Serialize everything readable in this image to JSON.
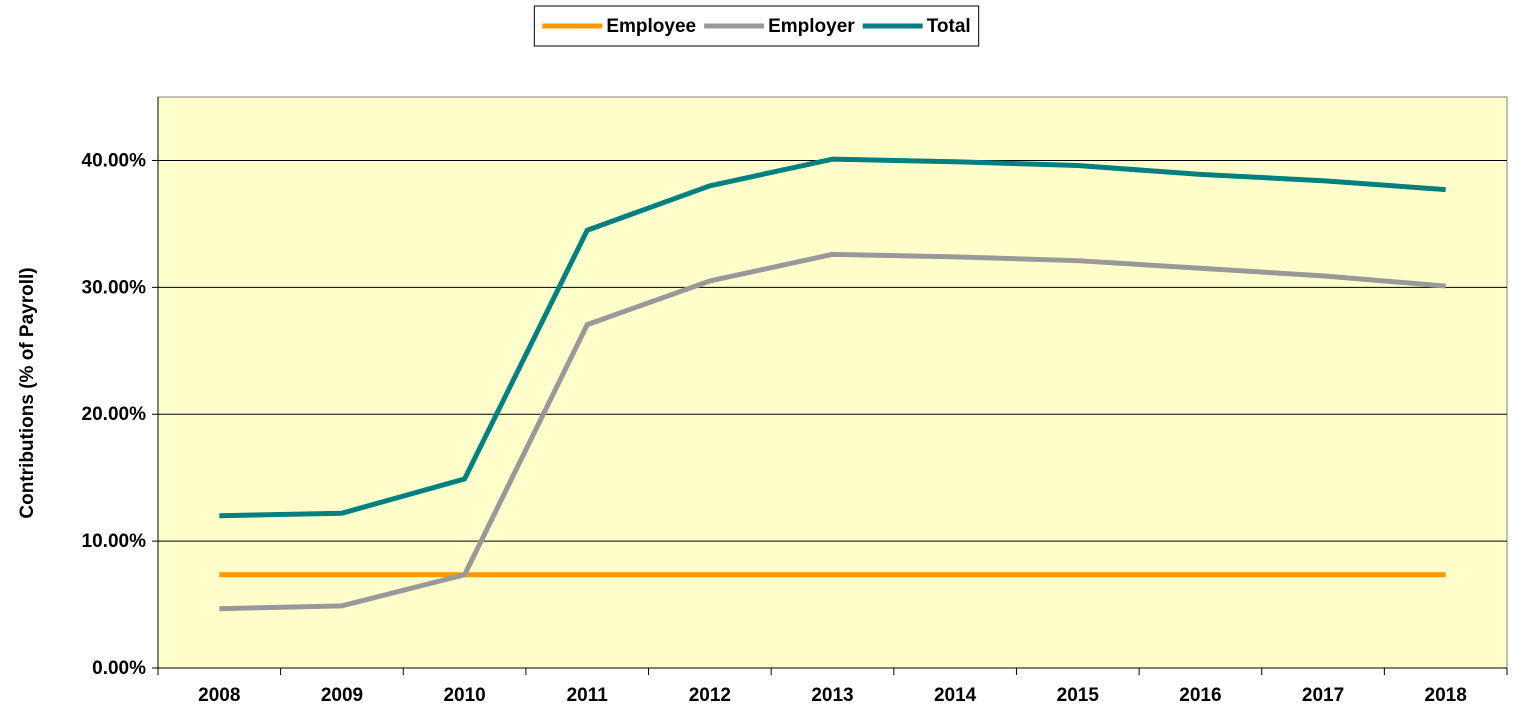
{
  "chart_data": {
    "type": "line",
    "y_label": "Contributions (% of Payroll)",
    "categories": [
      "2008",
      "2009",
      "2010",
      "2011",
      "2012",
      "2013",
      "2014",
      "2015",
      "2016",
      "2017",
      "2018"
    ],
    "series": [
      {
        "name": "Employee",
        "color": "#ff9900",
        "values": [
          7.35,
          7.35,
          7.35,
          7.35,
          7.35,
          7.35,
          7.35,
          7.35,
          7.35,
          7.35,
          7.35
        ]
      },
      {
        "name": "Employer",
        "color": "#999999",
        "values": [
          4.67,
          4.9,
          7.35,
          27.06,
          30.5,
          32.6,
          32.4,
          32.1,
          31.5,
          30.9,
          30.1
        ]
      },
      {
        "name": "Total",
        "color": "#008080",
        "values": [
          12.0,
          12.2,
          14.9,
          34.5,
          38.0,
          40.1,
          39.9,
          39.6,
          38.9,
          38.4,
          37.7
        ]
      }
    ],
    "ylim": [
      0,
      45
    ],
    "yticks": [
      {
        "value": 0,
        "label": "0.00%"
      },
      {
        "value": 10,
        "label": "10.00%"
      },
      {
        "value": 20,
        "label": "20.00%"
      },
      {
        "value": 30,
        "label": "30.00%"
      },
      {
        "value": 40,
        "label": "40.00%"
      }
    ],
    "grid": true,
    "legend": "top",
    "background": "#ffffcc"
  }
}
